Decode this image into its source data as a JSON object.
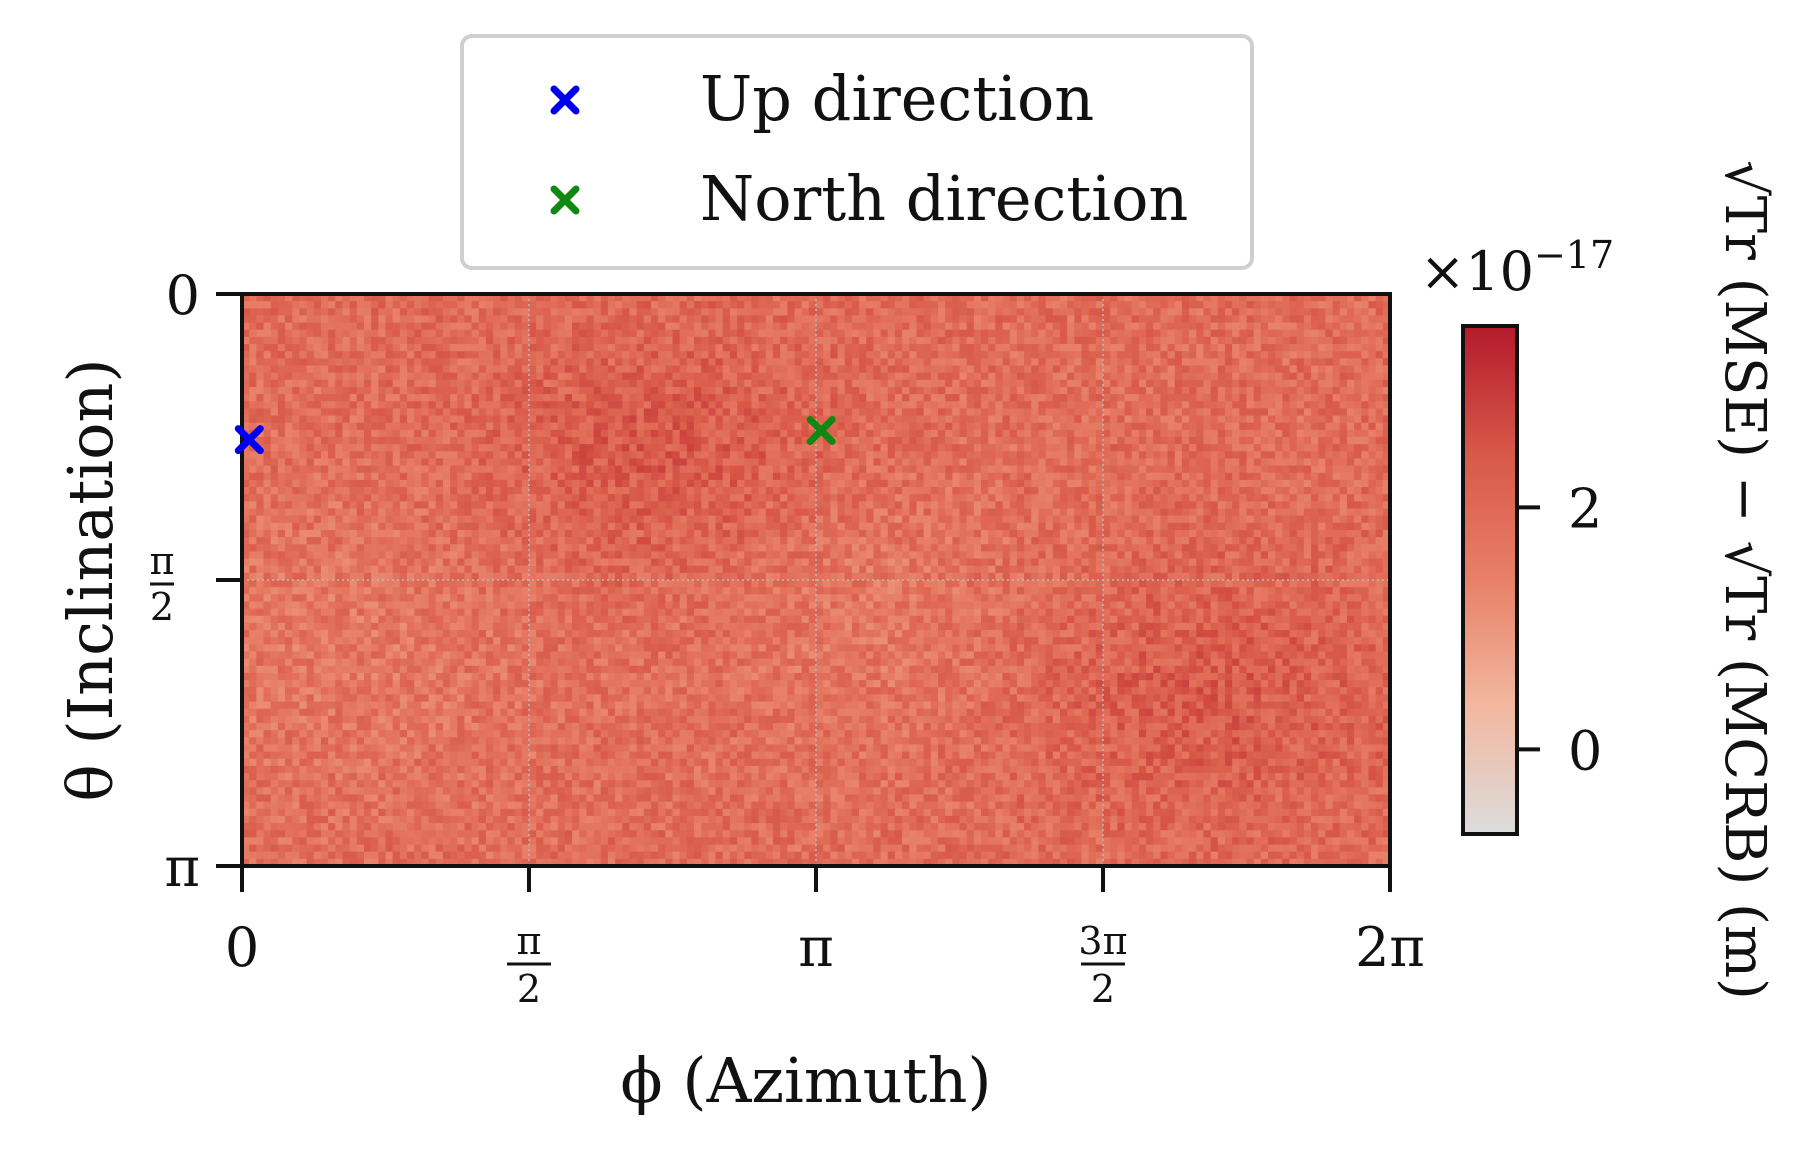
{
  "chart_data": {
    "type": "heatmap",
    "title": "",
    "xlabel": "ϕ (Azimuth)",
    "ylabel": "θ (Inclination)",
    "x_range": [
      0,
      6.283185307
    ],
    "y_range": [
      0,
      3.141592654
    ],
    "y_axis_inverted": true,
    "x_ticks": [
      {
        "value": 0,
        "label": "0"
      },
      {
        "value": 1.570796327,
        "label": "π/2",
        "num": "π",
        "den": "2"
      },
      {
        "value": 3.141592654,
        "label": "π"
      },
      {
        "value": 4.71238898,
        "label": "3π/2",
        "num": "3π",
        "den": "2"
      },
      {
        "value": 6.283185307,
        "label": "2π"
      }
    ],
    "y_ticks": [
      {
        "value": 0,
        "label": "0"
      },
      {
        "value": 1.570796327,
        "label": "π/2",
        "num": "π",
        "den": "2"
      },
      {
        "value": 3.141592654,
        "label": "π"
      }
    ],
    "grid": true,
    "field": {
      "description_values": "noisy field, values roughly 1.2–2.8 (×10⁻¹⁷ m); darker near (ϕ≈2.3,θ≈0.9) and (ϕ≈5.2,θ≈2.2)",
      "base": 1.9,
      "noise": 0.55,
      "blobs": [
        {
          "x": 2.3,
          "y": 0.9,
          "amp": 0.45,
          "sx": 1.0,
          "sy": 0.7
        },
        {
          "x": 5.3,
          "y": 2.2,
          "amp": 0.4,
          "sx": 1.0,
          "sy": 0.7
        },
        {
          "x": 0.6,
          "y": 1.9,
          "amp": -0.25,
          "sx": 1.2,
          "sy": 0.9
        },
        {
          "x": 3.4,
          "y": 1.7,
          "amp": -0.3,
          "sx": 0.9,
          "sy": 0.8
        }
      ]
    },
    "markers": [
      {
        "name": "Up direction",
        "x": 0.04,
        "y": 0.8,
        "color": "#0000ee"
      },
      {
        "name": "North direction",
        "x": 3.17,
        "y": 0.75,
        "color": "#118811"
      }
    ],
    "legend": {
      "placement": "top-center",
      "entries": [
        {
          "label": "Up direction",
          "color": "#0000ee"
        },
        {
          "label": "North direction",
          "color": "#118811"
        }
      ]
    },
    "colorbar": {
      "colormap": [
        "#dcdcdc",
        "#f2b8a0",
        "#e88068",
        "#d85848",
        "#b41a2c"
      ],
      "range": [
        -0.7,
        3.5
      ],
      "ticks": [
        {
          "value": 0,
          "label": "0"
        },
        {
          "value": 2,
          "label": "2"
        }
      ],
      "offset_text_base": "×10",
      "offset_text_exp": "−17",
      "label": "√Tr (MSE) − √Tr (MCRB) (m)"
    }
  }
}
